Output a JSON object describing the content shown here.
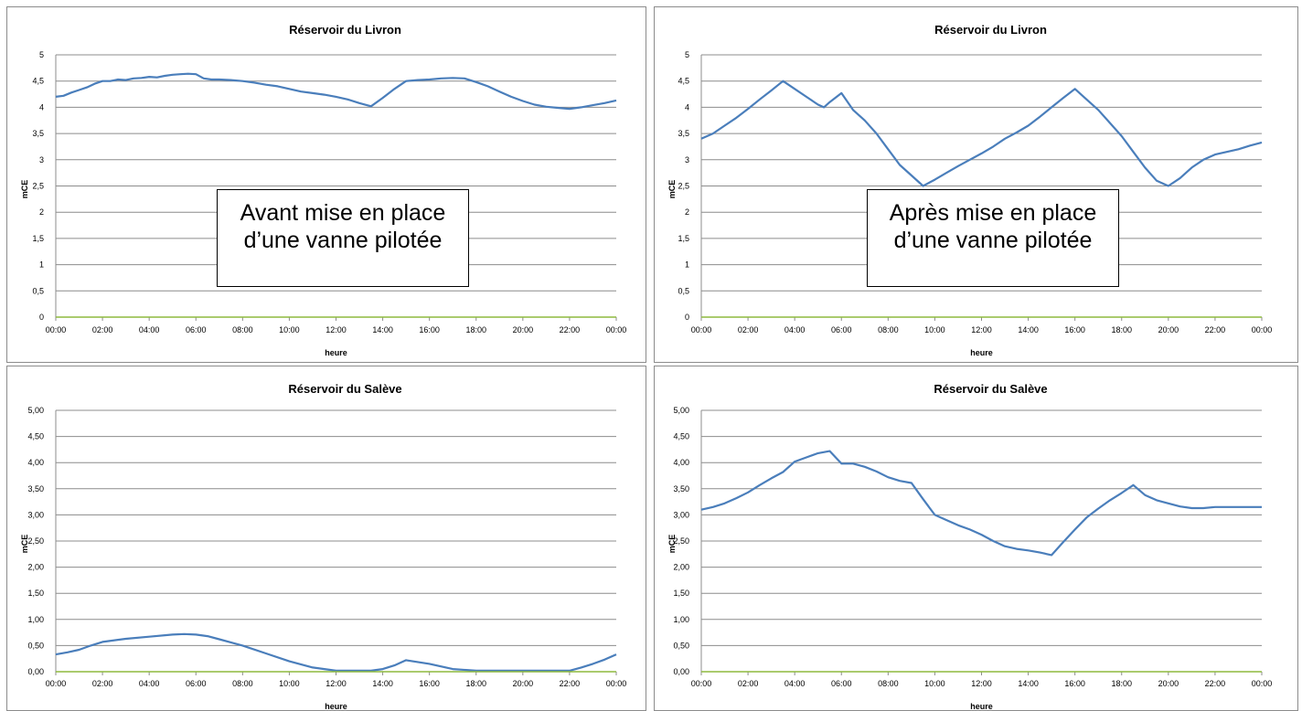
{
  "chart_data": [
    {
      "type": "line",
      "title": "Réservoir du Livron",
      "xlabel": "heure",
      "ylabel": "mCE",
      "ylim": [
        0,
        5
      ],
      "xlim": [
        "00:00",
        "24:00"
      ],
      "yticks": [
        "0",
        "0,5",
        "1",
        "1,5",
        "2",
        "2,5",
        "3",
        "3,5",
        "4",
        "4,5",
        "5"
      ],
      "xticks": [
        "00:00",
        "02:00",
        "04:00",
        "06:00",
        "08:00",
        "10:00",
        "12:00",
        "14:00",
        "16:00",
        "18:00",
        "20:00",
        "22:00",
        "00:00"
      ],
      "grid": true,
      "annotation": "Avant mise en place d’une vanne pilotée",
      "series": [
        {
          "color": "#4a7ebb",
          "x": [
            "00:00",
            "00:20",
            "00:40",
            "01:00",
            "01:20",
            "01:40",
            "02:00",
            "02:20",
            "02:40",
            "03:00",
            "03:20",
            "03:40",
            "04:00",
            "04:20",
            "04:40",
            "05:00",
            "05:20",
            "05:40",
            "06:00",
            "06:20",
            "06:40",
            "07:00",
            "07:30",
            "08:00",
            "08:30",
            "09:00",
            "09:30",
            "10:00",
            "10:30",
            "11:00",
            "11:30",
            "12:00",
            "12:30",
            "13:00",
            "13:30",
            "14:00",
            "14:30",
            "15:00",
            "15:30",
            "16:00",
            "16:30",
            "17:00",
            "17:30",
            "18:00",
            "18:30",
            "19:00",
            "19:30",
            "20:00",
            "20:30",
            "21:00",
            "21:30",
            "22:00",
            "22:30",
            "23:00",
            "23:30",
            "24:00"
          ],
          "y": [
            4.2,
            4.22,
            4.28,
            4.33,
            4.38,
            4.45,
            4.5,
            4.5,
            4.53,
            4.52,
            4.55,
            4.56,
            4.58,
            4.57,
            4.6,
            4.62,
            4.63,
            4.64,
            4.63,
            4.55,
            4.53,
            4.53,
            4.52,
            4.5,
            4.47,
            4.43,
            4.4,
            4.35,
            4.3,
            4.27,
            4.24,
            4.2,
            4.15,
            4.08,
            4.02,
            4.18,
            4.35,
            4.5,
            4.52,
            4.53,
            4.55,
            4.56,
            4.55,
            4.48,
            4.4,
            4.3,
            4.2,
            4.12,
            4.05,
            4.01,
            3.99,
            3.97,
            4.0,
            4.04,
            4.08,
            4.13
          ]
        },
        {
          "color": "#8dba3f",
          "x": [
            "00:00",
            "24:00"
          ],
          "y": [
            0,
            0
          ]
        }
      ]
    },
    {
      "type": "line",
      "title": "Réservoir du Livron",
      "xlabel": "heure",
      "ylabel": "mCE",
      "ylim": [
        0,
        5
      ],
      "xlim": [
        "00:00",
        "24:00"
      ],
      "yticks": [
        "0",
        "0,5",
        "1",
        "1,5",
        "2",
        "2,5",
        "3",
        "3,5",
        "4",
        "4,5",
        "5"
      ],
      "xticks": [
        "00:00",
        "02:00",
        "04:00",
        "06:00",
        "08:00",
        "10:00",
        "12:00",
        "14:00",
        "16:00",
        "18:00",
        "20:00",
        "22:00",
        "00:00"
      ],
      "grid": true,
      "annotation": "Après mise en place d’une vanne pilotée",
      "series": [
        {
          "color": "#4a7ebb",
          "x": [
            "00:00",
            "00:30",
            "01:00",
            "01:30",
            "02:00",
            "02:30",
            "03:00",
            "03:30",
            "04:00",
            "04:30",
            "05:00",
            "05:15",
            "05:30",
            "06:00",
            "06:30",
            "07:00",
            "07:30",
            "08:00",
            "08:30",
            "09:00",
            "09:30",
            "10:00",
            "10:30",
            "11:00",
            "11:30",
            "12:00",
            "12:30",
            "13:00",
            "13:30",
            "14:00",
            "14:30",
            "15:00",
            "15:30",
            "16:00",
            "16:30",
            "17:00",
            "17:30",
            "18:00",
            "18:30",
            "19:00",
            "19:30",
            "20:00",
            "20:30",
            "21:00",
            "21:30",
            "22:00",
            "22:30",
            "23:00",
            "23:30",
            "24:00"
          ],
          "y": [
            3.4,
            3.5,
            3.65,
            3.8,
            3.97,
            4.15,
            4.32,
            4.5,
            4.35,
            4.2,
            4.05,
            4.0,
            4.1,
            4.27,
            3.95,
            3.75,
            3.5,
            3.2,
            2.9,
            2.7,
            2.5,
            2.62,
            2.75,
            2.88,
            3.0,
            3.12,
            3.25,
            3.4,
            3.52,
            3.65,
            3.82,
            4.0,
            4.18,
            4.35,
            4.15,
            3.95,
            3.7,
            3.45,
            3.15,
            2.85,
            2.6,
            2.5,
            2.65,
            2.85,
            3.0,
            3.1,
            3.15,
            3.2,
            3.27,
            3.33
          ]
        },
        {
          "color": "#8dba3f",
          "x": [
            "00:00",
            "24:00"
          ],
          "y": [
            0,
            0
          ]
        }
      ]
    },
    {
      "type": "line",
      "title": "Réservoir du Salève",
      "xlabel": "heure",
      "ylabel": "mCE",
      "ylim": [
        0,
        5
      ],
      "xlim": [
        "00:00",
        "24:00"
      ],
      "yticks": [
        "0,00",
        "0,50",
        "1,00",
        "1,50",
        "2,00",
        "2,50",
        "3,00",
        "3,50",
        "4,00",
        "4,50",
        "5,00"
      ],
      "xticks": [
        "00:00",
        "02:00",
        "04:00",
        "06:00",
        "08:00",
        "10:00",
        "12:00",
        "14:00",
        "16:00",
        "18:00",
        "20:00",
        "22:00",
        "00:00"
      ],
      "grid": true,
      "series": [
        {
          "color": "#4a7ebb",
          "x": [
            "00:00",
            "00:30",
            "01:00",
            "01:30",
            "02:00",
            "03:00",
            "04:00",
            "05:00",
            "05:30",
            "06:00",
            "06:30",
            "07:00",
            "08:00",
            "09:00",
            "10:00",
            "11:00",
            "12:00",
            "13:00",
            "13:30",
            "14:00",
            "14:30",
            "15:00",
            "16:00",
            "17:00",
            "18:00",
            "19:00",
            "20:00",
            "21:00",
            "22:00",
            "22:30",
            "23:00",
            "23:30",
            "24:00"
          ],
          "y": [
            0.33,
            0.37,
            0.42,
            0.5,
            0.57,
            0.63,
            0.67,
            0.71,
            0.72,
            0.71,
            0.68,
            0.62,
            0.5,
            0.35,
            0.2,
            0.08,
            0.02,
            0.02,
            0.02,
            0.05,
            0.12,
            0.22,
            0.15,
            0.05,
            0.02,
            0.02,
            0.02,
            0.02,
            0.02,
            0.08,
            0.15,
            0.23,
            0.33
          ]
        },
        {
          "color": "#8dba3f",
          "x": [
            "00:00",
            "24:00"
          ],
          "y": [
            0,
            0
          ]
        }
      ]
    },
    {
      "type": "line",
      "title": "Réservoir du Salève",
      "xlabel": "heure",
      "ylabel": "mCE",
      "ylim": [
        0,
        5
      ],
      "xlim": [
        "00:00",
        "24:00"
      ],
      "yticks": [
        "0,00",
        "0,50",
        "1,00",
        "1,50",
        "2,00",
        "2,50",
        "3,00",
        "3,50",
        "4,00",
        "4,50",
        "5,00"
      ],
      "xticks": [
        "00:00",
        "02:00",
        "04:00",
        "06:00",
        "08:00",
        "10:00",
        "12:00",
        "14:00",
        "16:00",
        "18:00",
        "20:00",
        "22:00",
        "00:00"
      ],
      "grid": true,
      "series": [
        {
          "color": "#4a7ebb",
          "x": [
            "00:00",
            "00:30",
            "01:00",
            "01:30",
            "02:00",
            "02:30",
            "03:00",
            "03:30",
            "04:00",
            "04:30",
            "05:00",
            "05:30",
            "06:00",
            "06:30",
            "07:00",
            "07:30",
            "08:00",
            "08:30",
            "09:00",
            "09:30",
            "10:00",
            "10:30",
            "11:00",
            "11:30",
            "12:00",
            "12:30",
            "13:00",
            "13:30",
            "14:00",
            "14:30",
            "15:00",
            "15:30",
            "16:00",
            "16:30",
            "17:00",
            "17:30",
            "18:00",
            "18:30",
            "19:00",
            "19:30",
            "20:00",
            "20:30",
            "21:00",
            "21:30",
            "22:00",
            "22:30",
            "23:00",
            "23:30",
            "24:00"
          ],
          "y": [
            3.1,
            3.15,
            3.22,
            3.32,
            3.43,
            3.57,
            3.7,
            3.82,
            4.02,
            4.1,
            4.18,
            4.22,
            3.98,
            3.98,
            3.92,
            3.83,
            3.72,
            3.65,
            3.61,
            3.3,
            3.0,
            2.9,
            2.8,
            2.72,
            2.62,
            2.5,
            2.4,
            2.35,
            2.32,
            2.28,
            2.23,
            2.48,
            2.72,
            2.95,
            3.12,
            3.28,
            3.42,
            3.57,
            3.38,
            3.28,
            3.22,
            3.16,
            3.13,
            3.13,
            3.15,
            3.15,
            3.15,
            3.15,
            3.15
          ]
        },
        {
          "color": "#8dba3f",
          "x": [
            "00:00",
            "24:00"
          ],
          "y": [
            0,
            0
          ]
        }
      ]
    }
  ]
}
